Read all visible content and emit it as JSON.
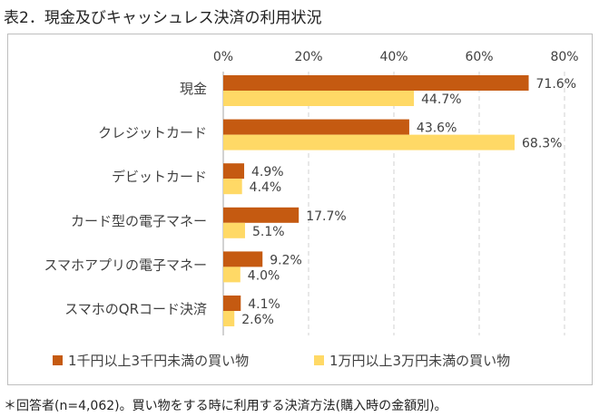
{
  "header": {
    "title": "表2．現金及びキャッシュレス決済の利用状況"
  },
  "footnote": "＊回答者(n=4,062)。買い物をする時に利用する決済方法(購入時の金額別)。",
  "chart_data": {
    "type": "bar",
    "orientation": "horizontal",
    "title": "表2．現金及びキャッシュレス決済の利用状況",
    "categories": [
      "現金",
      "クレジットカード",
      "デビットカード",
      "カード型の電子マネー",
      "スマホアプリの電子マネー",
      "スマホのQRコード決済"
    ],
    "series": [
      {
        "name": "1千円以上3千円未満の買い物",
        "values": [
          71.6,
          43.6,
          4.9,
          17.7,
          9.2,
          4.1
        ],
        "labels": [
          "71.6%",
          "43.6%",
          "4.9%",
          "17.7%",
          "9.2%",
          "4.1%"
        ],
        "color": "#C55A11"
      },
      {
        "name": "1万円以上3万円未満の買い物",
        "values": [
          44.7,
          68.3,
          4.4,
          5.1,
          4.0,
          2.6
        ],
        "labels": [
          "44.7%",
          "68.3%",
          "4.4%",
          "5.1%",
          "4.0%",
          "2.6%"
        ],
        "color": "#FFD966"
      }
    ],
    "xlim": [
      0,
      80
    ],
    "ticks": [
      0,
      20,
      40,
      60,
      80
    ],
    "tick_labels": [
      "0%",
      "20%",
      "40%",
      "60%",
      "80%"
    ],
    "xaxis_position": "top",
    "grid": true,
    "legend_position": "bottom"
  }
}
